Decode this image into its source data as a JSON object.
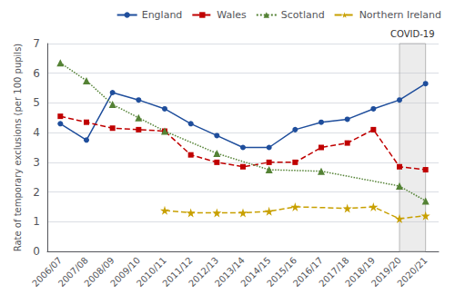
{
  "chart_data": {
    "type": "line",
    "categories": [
      "2006/07",
      "2007/08",
      "2008/09",
      "2009/10",
      "2010/11",
      "2011/12",
      "2012/13",
      "2013/14",
      "2014/15",
      "2015/16",
      "2016/17",
      "2017/18",
      "2018/19",
      "2019/20",
      "2020/21"
    ],
    "series": [
      {
        "name": "England",
        "color": "#1f4e9c",
        "marker": "circle",
        "line_style": "solid",
        "values": [
          4.3,
          3.75,
          5.35,
          5.1,
          4.8,
          4.3,
          3.9,
          3.5,
          3.5,
          4.1,
          4.35,
          4.45,
          4.8,
          5.1,
          5.65
        ]
      },
      {
        "name": "Wales",
        "color": "#c00000",
        "marker": "square",
        "line_style": "dashed",
        "values": [
          4.55,
          4.35,
          4.15,
          4.1,
          4.05,
          3.25,
          3.0,
          2.85,
          3.0,
          3.0,
          3.5,
          3.65,
          4.1,
          2.85,
          2.75
        ]
      },
      {
        "name": "Scotland",
        "color": "#548235",
        "marker": "triangle",
        "line_style": "dotted",
        "values": [
          6.35,
          5.75,
          4.95,
          4.5,
          4.05,
          null,
          3.3,
          null,
          2.75,
          null,
          2.7,
          null,
          null,
          2.2,
          1.7
        ]
      },
      {
        "name": "Northern Ireland",
        "color": "#c8a000",
        "marker": "star",
        "line_style": "dashed",
        "values": [
          null,
          null,
          null,
          null,
          1.38,
          1.3,
          1.3,
          1.3,
          1.35,
          1.5,
          null,
          1.45,
          1.5,
          1.1,
          1.2
        ]
      }
    ],
    "ylabel": "Rate of temporary exclusions (per 100 pupils)",
    "ylim": [
      0,
      7
    ],
    "yticks": [
      0,
      1,
      2,
      3,
      4,
      5,
      6,
      7
    ],
    "grid": true,
    "legend": "upper right",
    "annotations": [
      {
        "text": "COVID-19",
        "x_from": "2019/20",
        "x_to": "2020/21"
      }
    ]
  }
}
